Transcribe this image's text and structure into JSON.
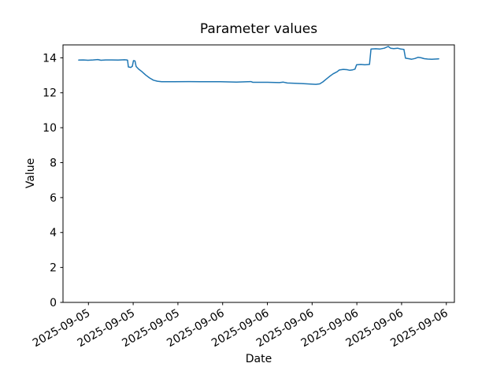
{
  "chart_data": {
    "type": "line",
    "title": "Parameter values",
    "xlabel": "Date",
    "ylabel": "Value",
    "background_color": "#ffffff",
    "axis_color": "#000000",
    "grid": false,
    "legend_position": "none",
    "ylim": [
      0,
      14.74
    ],
    "y_ticks": [
      0,
      2,
      4,
      6,
      8,
      10,
      12,
      14
    ],
    "x_tick_rotation_deg": 30,
    "x_ticks": [
      {
        "label": "2025-09-05",
        "pos": 0.065
      },
      {
        "label": "2025-09-05",
        "pos": 0.1793
      },
      {
        "label": "2025-09-05",
        "pos": 0.2936
      },
      {
        "label": "2025-09-06",
        "pos": 0.4079
      },
      {
        "label": "2025-09-06",
        "pos": 0.5222
      },
      {
        "label": "2025-09-06",
        "pos": 0.6365
      },
      {
        "label": "2025-09-06",
        "pos": 0.7508
      },
      {
        "label": "2025-09-06",
        "pos": 0.8651
      },
      {
        "label": "2025-09-06",
        "pos": 0.9794
      }
    ],
    "series": [
      {
        "name": "Parameter values",
        "color": "#1f77b4",
        "line_width": 1.5,
        "points": [
          [
            0.04,
            13.87
          ],
          [
            0.052,
            13.88
          ],
          [
            0.064,
            13.86
          ],
          [
            0.077,
            13.88
          ],
          [
            0.089,
            13.9
          ],
          [
            0.097,
            13.86
          ],
          [
            0.109,
            13.88
          ],
          [
            0.125,
            13.88
          ],
          [
            0.141,
            13.87
          ],
          [
            0.157,
            13.89
          ],
          [
            0.163,
            13.88
          ],
          [
            0.165,
            13.86
          ],
          [
            0.167,
            13.48
          ],
          [
            0.173,
            13.45
          ],
          [
            0.177,
            13.51
          ],
          [
            0.18,
            13.84
          ],
          [
            0.184,
            13.82
          ],
          [
            0.187,
            13.5
          ],
          [
            0.193,
            13.36
          ],
          [
            0.201,
            13.22
          ],
          [
            0.211,
            13.02
          ],
          [
            0.221,
            12.85
          ],
          [
            0.231,
            12.72
          ],
          [
            0.241,
            12.66
          ],
          [
            0.252,
            12.63
          ],
          [
            0.282,
            12.63
          ],
          [
            0.322,
            12.64
          ],
          [
            0.362,
            12.63
          ],
          [
            0.402,
            12.63
          ],
          [
            0.443,
            12.61
          ],
          [
            0.48,
            12.64
          ],
          [
            0.485,
            12.6
          ],
          [
            0.523,
            12.6
          ],
          [
            0.553,
            12.58
          ],
          [
            0.563,
            12.61
          ],
          [
            0.573,
            12.56
          ],
          [
            0.604,
            12.53
          ],
          [
            0.624,
            12.51
          ],
          [
            0.646,
            12.48
          ],
          [
            0.656,
            12.51
          ],
          [
            0.664,
            12.62
          ],
          [
            0.672,
            12.77
          ],
          [
            0.68,
            12.92
          ],
          [
            0.69,
            13.08
          ],
          [
            0.7,
            13.2
          ],
          [
            0.706,
            13.3
          ],
          [
            0.716,
            13.34
          ],
          [
            0.726,
            13.32
          ],
          [
            0.732,
            13.29
          ],
          [
            0.74,
            13.31
          ],
          [
            0.746,
            13.35
          ],
          [
            0.75,
            13.6
          ],
          [
            0.761,
            13.62
          ],
          [
            0.771,
            13.6
          ],
          [
            0.783,
            13.62
          ],
          [
            0.787,
            14.5
          ],
          [
            0.799,
            14.52
          ],
          [
            0.809,
            14.5
          ],
          [
            0.821,
            14.55
          ],
          [
            0.831,
            14.65
          ],
          [
            0.837,
            14.55
          ],
          [
            0.845,
            14.53
          ],
          [
            0.855,
            14.55
          ],
          [
            0.863,
            14.5
          ],
          [
            0.871,
            14.48
          ],
          [
            0.875,
            13.98
          ],
          [
            0.883,
            13.95
          ],
          [
            0.891,
            13.92
          ],
          [
            0.899,
            13.96
          ],
          [
            0.907,
            14.03
          ],
          [
            0.915,
            14.0
          ],
          [
            0.923,
            13.95
          ],
          [
            0.932,
            13.93
          ],
          [
            0.942,
            13.92
          ],
          [
            0.96,
            13.94
          ]
        ]
      }
    ]
  }
}
